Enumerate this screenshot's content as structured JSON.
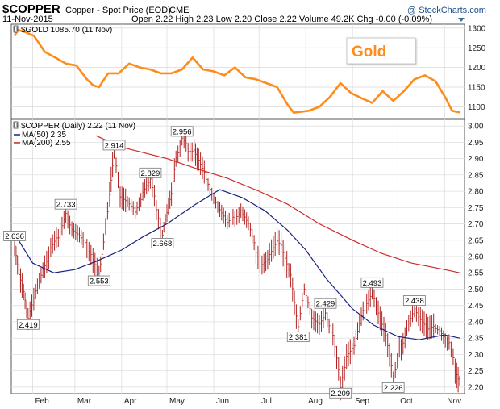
{
  "header": {
    "symbol": "$COPPER",
    "description": "Copper - Spot Price (EOD)",
    "exchange": "CME",
    "date": "11-Nov-2015",
    "stats": "Open 2.22  High 2.23  Low 2.20  Close 2.22  Volume 49.2K  Chg -0.00 (-0.09%)",
    "watermark": "@ StockCharts.com"
  },
  "upper_panel": {
    "legend": "$GOLD 1085.70 (11 Nov)",
    "callout": "Gold"
  },
  "lower_panel": {
    "legend_main": "$COPPER (Daily) 2.22 (11 Nov)",
    "legend_ma50": "MA(50) 2.35",
    "legend_ma200": "MA(200) 2.55"
  },
  "colors": {
    "gold": "#ff8c1a",
    "copper": "#b22222",
    "ma50": "#1a237e",
    "ma200": "#cc2a2a",
    "grid": "#d9d9d9",
    "callout_text": "#ff8c1a"
  },
  "chart_data": [
    {
      "type": "line",
      "title": "$GOLD 1085.70 (11 Nov)",
      "x_ticks": [
        "Feb",
        "Mar",
        "Apr",
        "May",
        "Jun",
        "Jul",
        "Aug",
        "Sep",
        "Oct",
        "Nov"
      ],
      "x_range": [
        "2015-01-20",
        "2015-11-11"
      ],
      "ylim": [
        1070,
        1310
      ],
      "y_ticks": [
        1100,
        1150,
        1200,
        1250,
        1300
      ],
      "series": [
        {
          "name": "$GOLD",
          "points": [
            [
              "2015-01-20",
              1280
            ],
            [
              "2015-01-22",
              1295
            ],
            [
              "2015-01-26",
              1292
            ],
            [
              "2015-02-02",
              1280
            ],
            [
              "2015-02-09",
              1240
            ],
            [
              "2015-02-16",
              1225
            ],
            [
              "2015-02-23",
              1210
            ],
            [
              "2015-03-02",
              1205
            ],
            [
              "2015-03-09",
              1170
            ],
            [
              "2015-03-13",
              1155
            ],
            [
              "2015-03-17",
              1150
            ],
            [
              "2015-03-23",
              1185
            ],
            [
              "2015-03-30",
              1185
            ],
            [
              "2015-04-06",
              1210
            ],
            [
              "2015-04-13",
              1200
            ],
            [
              "2015-04-20",
              1195
            ],
            [
              "2015-04-27",
              1185
            ],
            [
              "2015-05-04",
              1185
            ],
            [
              "2015-05-11",
              1195
            ],
            [
              "2015-05-18",
              1225
            ],
            [
              "2015-05-25",
              1195
            ],
            [
              "2015-06-01",
              1190
            ],
            [
              "2015-06-08",
              1180
            ],
            [
              "2015-06-15",
              1200
            ],
            [
              "2015-06-22",
              1175
            ],
            [
              "2015-06-29",
              1170
            ],
            [
              "2015-07-06",
              1160
            ],
            [
              "2015-07-13",
              1150
            ],
            [
              "2015-07-20",
              1105
            ],
            [
              "2015-07-24",
              1085
            ],
            [
              "2015-08-03",
              1090
            ],
            [
              "2015-08-10",
              1100
            ],
            [
              "2015-08-17",
              1125
            ],
            [
              "2015-08-24",
              1160
            ],
            [
              "2015-08-31",
              1135
            ],
            [
              "2015-09-08",
              1120
            ],
            [
              "2015-09-14",
              1110
            ],
            [
              "2015-09-21",
              1140
            ],
            [
              "2015-09-28",
              1115
            ],
            [
              "2015-10-05",
              1140
            ],
            [
              "2015-10-12",
              1170
            ],
            [
              "2015-10-19",
              1180
            ],
            [
              "2015-10-26",
              1165
            ],
            [
              "2015-11-02",
              1120
            ],
            [
              "2015-11-06",
              1090
            ],
            [
              "2015-11-11",
              1085.7
            ]
          ]
        }
      ]
    },
    {
      "type": "line",
      "title": "$COPPER (Daily) 2.22 (11 Nov)",
      "x_ticks": [
        "Feb",
        "Mar",
        "Apr",
        "May",
        "Jun",
        "Jul",
        "Aug",
        "Sep",
        "Oct",
        "Nov"
      ],
      "x_range": [
        "2015-01-20",
        "2015-11-11"
      ],
      "ylim": [
        2.18,
        3.02
      ],
      "y_ticks": [
        2.2,
        2.25,
        2.3,
        2.35,
        2.4,
        2.45,
        2.5,
        2.55,
        2.6,
        2.65,
        2.7,
        2.75,
        2.8,
        2.85,
        2.9,
        2.95,
        3.0
      ],
      "series": [
        {
          "name": "$COPPER",
          "points": [
            [
              "2015-01-20",
              2.636
            ],
            [
              "2015-01-23",
              2.55
            ],
            [
              "2015-01-26",
              2.5
            ],
            [
              "2015-01-29",
              2.419
            ],
            [
              "2015-02-03",
              2.5
            ],
            [
              "2015-02-09",
              2.58
            ],
            [
              "2015-02-13",
              2.62
            ],
            [
              "2015-02-18",
              2.66
            ],
            [
              "2015-02-23",
              2.733
            ],
            [
              "2015-02-27",
              2.68
            ],
            [
              "2015-03-04",
              2.66
            ],
            [
              "2015-03-09",
              2.63
            ],
            [
              "2015-03-13",
              2.6
            ],
            [
              "2015-03-17",
              2.553
            ],
            [
              "2015-03-20",
              2.64
            ],
            [
              "2015-03-24",
              2.78
            ],
            [
              "2015-03-27",
              2.914
            ],
            [
              "2015-03-31",
              2.78
            ],
            [
              "2015-04-06",
              2.76
            ],
            [
              "2015-04-10",
              2.74
            ],
            [
              "2015-04-15",
              2.79
            ],
            [
              "2015-04-20",
              2.829
            ],
            [
              "2015-04-24",
              2.75
            ],
            [
              "2015-04-28",
              2.668
            ],
            [
              "2015-05-01",
              2.74
            ],
            [
              "2015-05-04",
              2.8
            ],
            [
              "2015-05-07",
              2.91
            ],
            [
              "2015-05-11",
              2.956
            ],
            [
              "2015-05-15",
              2.93
            ],
            [
              "2015-05-19",
              2.93
            ],
            [
              "2015-05-22",
              2.89
            ],
            [
              "2015-05-27",
              2.84
            ],
            [
              "2015-06-01",
              2.78
            ],
            [
              "2015-06-05",
              2.74
            ],
            [
              "2015-06-10",
              2.7
            ],
            [
              "2015-06-15",
              2.72
            ],
            [
              "2015-06-19",
              2.74
            ],
            [
              "2015-06-24",
              2.7
            ],
            [
              "2015-06-29",
              2.62
            ],
            [
              "2015-07-03",
              2.58
            ],
            [
              "2015-07-08",
              2.6
            ],
            [
              "2015-07-13",
              2.64
            ],
            [
              "2015-07-17",
              2.62
            ],
            [
              "2015-07-22",
              2.55
            ],
            [
              "2015-07-27",
              2.381
            ],
            [
              "2015-07-31",
              2.5
            ],
            [
              "2015-08-05",
              2.42
            ],
            [
              "2015-08-10",
              2.4
            ],
            [
              "2015-08-14",
              2.429
            ],
            [
              "2015-08-19",
              2.35
            ],
            [
              "2015-08-24",
              2.209
            ],
            [
              "2015-08-28",
              2.3
            ],
            [
              "2015-09-02",
              2.33
            ],
            [
              "2015-09-08",
              2.44
            ],
            [
              "2015-09-14",
              2.493
            ],
            [
              "2015-09-18",
              2.42
            ],
            [
              "2015-09-23",
              2.35
            ],
            [
              "2015-09-28",
              2.226
            ],
            [
              "2015-10-02",
              2.31
            ],
            [
              "2015-10-07",
              2.38
            ],
            [
              "2015-10-12",
              2.438
            ],
            [
              "2015-10-16",
              2.4
            ],
            [
              "2015-10-21",
              2.37
            ],
            [
              "2015-10-26",
              2.38
            ],
            [
              "2015-10-30",
              2.37
            ],
            [
              "2015-11-04",
              2.33
            ],
            [
              "2015-11-08",
              2.26
            ],
            [
              "2015-11-11",
              2.22
            ]
          ]
        },
        {
          "name": "MA(50) 2.35",
          "points": [
            [
              "2015-01-20",
              2.67
            ],
            [
              "2015-02-01",
              2.58
            ],
            [
              "2015-02-15",
              2.55
            ],
            [
              "2015-03-01",
              2.56
            ],
            [
              "2015-03-15",
              2.585
            ],
            [
              "2015-04-01",
              2.62
            ],
            [
              "2015-04-15",
              2.66
            ],
            [
              "2015-05-01",
              2.7
            ],
            [
              "2015-05-20",
              2.76
            ],
            [
              "2015-06-05",
              2.805
            ],
            [
              "2015-06-20",
              2.78
            ],
            [
              "2015-07-05",
              2.74
            ],
            [
              "2015-07-20",
              2.68
            ],
            [
              "2015-08-01",
              2.62
            ],
            [
              "2015-08-15",
              2.53
            ],
            [
              "2015-09-01",
              2.44
            ],
            [
              "2015-09-15",
              2.39
            ],
            [
              "2015-10-01",
              2.355
            ],
            [
              "2015-10-15",
              2.345
            ],
            [
              "2015-11-01",
              2.36
            ],
            [
              "2015-11-11",
              2.35
            ]
          ]
        },
        {
          "name": "MA(200) 2.55",
          "points": [
            [
              "2015-03-15",
              2.97
            ],
            [
              "2015-04-01",
              2.935
            ],
            [
              "2015-05-01",
              2.9
            ],
            [
              "2015-05-20",
              2.87
            ],
            [
              "2015-06-10",
              2.84
            ],
            [
              "2015-07-01",
              2.8
            ],
            [
              "2015-07-20",
              2.76
            ],
            [
              "2015-08-10",
              2.7
            ],
            [
              "2015-09-01",
              2.65
            ],
            [
              "2015-09-20",
              2.61
            ],
            [
              "2015-10-10",
              2.58
            ],
            [
              "2015-11-01",
              2.56
            ],
            [
              "2015-11-11",
              2.55
            ]
          ]
        }
      ],
      "annotations": [
        {
          "date": "2015-01-20",
          "value": 2.636,
          "label": "2.636",
          "side": "above"
        },
        {
          "date": "2015-01-29",
          "value": 2.419,
          "label": "2.419",
          "side": "below"
        },
        {
          "date": "2015-02-23",
          "value": 2.733,
          "label": "2.733",
          "side": "above"
        },
        {
          "date": "2015-03-17",
          "value": 2.553,
          "label": "2.553",
          "side": "below"
        },
        {
          "date": "2015-03-27",
          "value": 2.914,
          "label": "2.914",
          "side": "above"
        },
        {
          "date": "2015-04-20",
          "value": 2.829,
          "label": "2.829",
          "side": "above"
        },
        {
          "date": "2015-04-28",
          "value": 2.668,
          "label": "2.668",
          "side": "below"
        },
        {
          "date": "2015-05-11",
          "value": 2.956,
          "label": "2.956",
          "side": "above"
        },
        {
          "date": "2015-07-27",
          "value": 2.381,
          "label": "2.381",
          "side": "below"
        },
        {
          "date": "2015-08-14",
          "value": 2.429,
          "label": "2.429",
          "side": "above"
        },
        {
          "date": "2015-08-24",
          "value": 2.209,
          "label": "2.209",
          "side": "below"
        },
        {
          "date": "2015-09-14",
          "value": 2.493,
          "label": "2.493",
          "side": "above"
        },
        {
          "date": "2015-09-28",
          "value": 2.226,
          "label": "2.226",
          "side": "below"
        },
        {
          "date": "2015-10-12",
          "value": 2.438,
          "label": "2.438",
          "side": "above"
        }
      ]
    }
  ]
}
